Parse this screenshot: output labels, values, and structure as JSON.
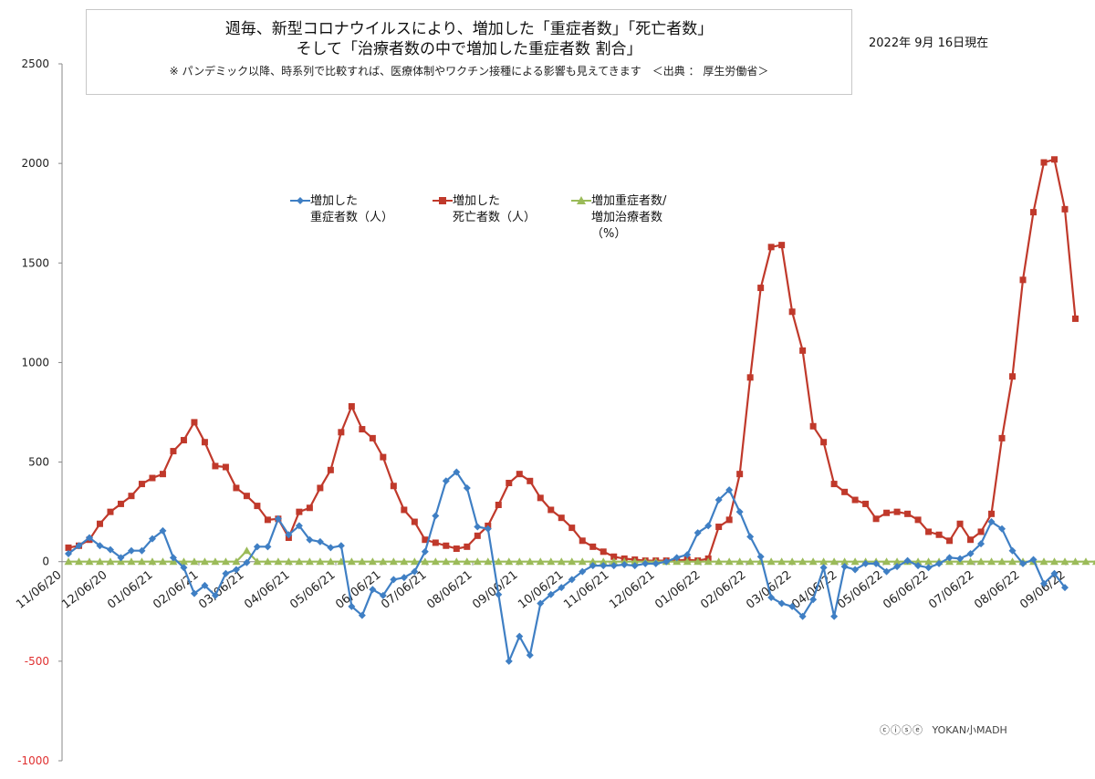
{
  "title": {
    "line1": "週毎、新型コロナウイルスにより、増加した「重症者数」「死亡者数」",
    "line2": "そして「治療者数の中で増加した重症者数 割合」",
    "note": "※ パンデミック以降、時系列で比較すれば、医療体制やワクチン接種による影響も見えてきます　＜出典 ： 厚生労働省＞"
  },
  "date_label": "2022年 9月 16日現在",
  "credit": {
    "license_icon": "cc-by-nc-nd-icon",
    "license_text": "ⓒⓘⓢⓔ",
    "author": "YOKAN小MADH"
  },
  "chart_data": {
    "type": "line",
    "title": "週毎、新型コロナウイルスにより、増加した「重症者数」「死亡者数」そして「治療者数の中で増加した重症者数 割合」",
    "xlabel": "",
    "ylabel": "",
    "ylim": [
      -1000,
      2500
    ],
    "yticks": [
      -1000,
      -500,
      0,
      500,
      1000,
      1500,
      2000,
      2500
    ],
    "ytick_labels": [
      "-1000",
      "-500",
      "0",
      "500",
      "1000",
      "1500",
      "2000",
      "2500"
    ],
    "negative_tick_color": "#e03030",
    "x_tick_labels": [
      "11/06/20",
      "12/06/20",
      "01/06/21",
      "02/06/21",
      "03/06/21",
      "04/06/21",
      "05/06/21",
      "06/06/21",
      "07/06/21",
      "08/06/21",
      "09/06/21",
      "10/06/21",
      "11/06/21",
      "12/06/21",
      "01/06/22",
      "02/06/22",
      "03/06/22",
      "04/06/22",
      "05/06/22",
      "06/06/22",
      "07/06/22",
      "08/06/22",
      "09/06/22"
    ],
    "grid": false,
    "legend_position": "top-center",
    "series": [
      {
        "name": "増加した\n重症者数（人）",
        "color": "#3f7fc4",
        "marker": "diamond",
        "values": [
          40,
          80,
          120,
          80,
          60,
          20,
          55,
          55,
          115,
          155,
          20,
          -30,
          -160,
          -120,
          -170,
          -60,
          -40,
          -5,
          75,
          75,
          215,
          135,
          180,
          110,
          100,
          70,
          80,
          -225,
          -270,
          -140,
          -170,
          -90,
          -80,
          -50,
          50,
          230,
          405,
          450,
          370,
          175,
          165,
          -165,
          -500,
          -375,
          -470,
          -210,
          -165,
          -130,
          -90,
          -50,
          -20,
          -20,
          -20,
          -15,
          -20,
          -10,
          -10,
          0,
          20,
          35,
          145,
          180,
          310,
          360,
          250,
          125,
          25,
          -180,
          -210,
          -225,
          -275,
          -190,
          -30,
          -275,
          -25,
          -40,
          -10,
          -10,
          -50,
          -25,
          5,
          -20,
          -30,
          -10,
          20,
          15,
          40,
          90,
          200,
          165,
          55,
          -10,
          10,
          -110,
          -60,
          -130
        ]
      },
      {
        "name": "増加した\n死亡者数（人）",
        "color": "#c0392b",
        "marker": "square",
        "values": [
          70,
          80,
          110,
          190,
          250,
          290,
          330,
          390,
          420,
          440,
          555,
          610,
          700,
          600,
          480,
          475,
          370,
          330,
          280,
          210,
          215,
          120,
          250,
          270,
          370,
          460,
          650,
          780,
          665,
          620,
          525,
          380,
          260,
          200,
          110,
          95,
          80,
          65,
          75,
          130,
          180,
          285,
          395,
          440,
          405,
          320,
          260,
          220,
          170,
          105,
          75,
          50,
          25,
          15,
          10,
          5,
          5,
          5,
          5,
          10,
          5,
          15,
          175,
          210,
          440,
          925,
          1375,
          1580,
          1590,
          1255,
          1060,
          680,
          600,
          390,
          350,
          310,
          290,
          215,
          245,
          250,
          240,
          210,
          150,
          135,
          105,
          190,
          110,
          150,
          240,
          620,
          930,
          1415,
          1755,
          2005,
          2020,
          1770,
          1220
        ]
      },
      {
        "name": "増加重症者数/\n増加治療者数\n（%）",
        "color": "#9bbb59",
        "marker": "triangle",
        "values": [
          0,
          0,
          0,
          0,
          0,
          0,
          0,
          0,
          0,
          0,
          0,
          0,
          0,
          0,
          0,
          0,
          0,
          55,
          0,
          0,
          0,
          0,
          0,
          0,
          0,
          0,
          0,
          0,
          0,
          0,
          0,
          0,
          0,
          0,
          0,
          0,
          0,
          0,
          0,
          0,
          0,
          0,
          0,
          0,
          0,
          0,
          0,
          0,
          0,
          0,
          0,
          0,
          0,
          0,
          0,
          0,
          0,
          0,
          0,
          0,
          0,
          0,
          0,
          0,
          0,
          0,
          0,
          0,
          0,
          0,
          0,
          0,
          0,
          0,
          0,
          0,
          0,
          0,
          0,
          0,
          0,
          0,
          0,
          0,
          0,
          0,
          0,
          0,
          0,
          0,
          0,
          0,
          0,
          0,
          0,
          0,
          0,
          0,
          0
        ]
      }
    ]
  }
}
